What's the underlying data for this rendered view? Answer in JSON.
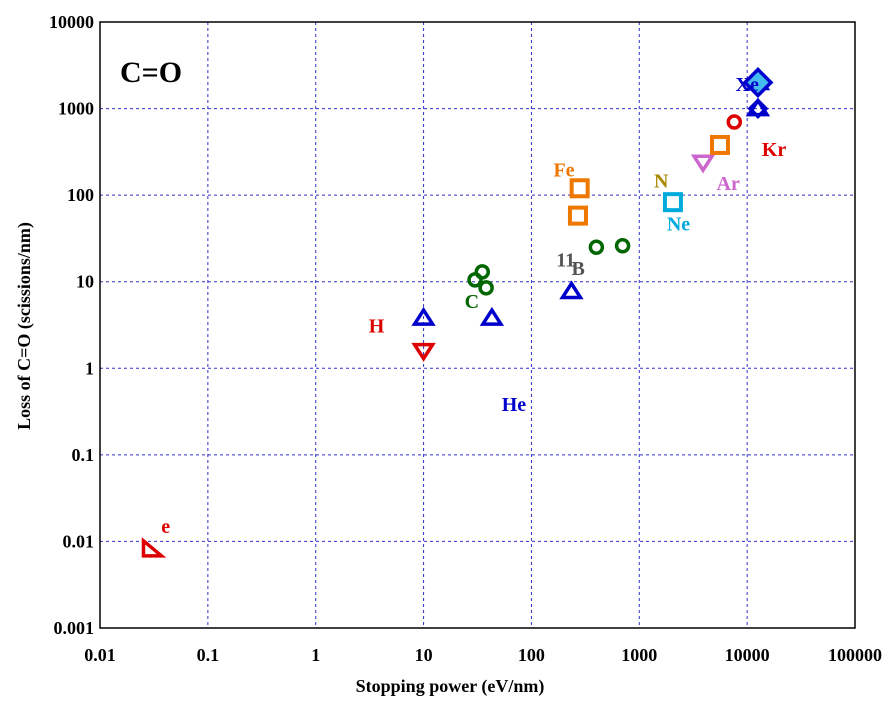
{
  "chart_data": {
    "type": "scatter",
    "title": "C=O",
    "xlabel": "Stopping power (eV/nm)",
    "ylabel": "Loss of C=O (scissions/nm)",
    "x_scale": "log",
    "y_scale": "log",
    "xlim": [
      0.01,
      100000
    ],
    "ylim": [
      0.001,
      10000
    ],
    "x_ticks": [
      0.01,
      0.1,
      1,
      10,
      100,
      1000,
      10000,
      100000
    ],
    "x_tick_labels": [
      "0.01",
      "0.1",
      "1",
      "10",
      "100",
      "1000",
      "10000",
      "100000"
    ],
    "y_ticks": [
      0.001,
      0.01,
      0.1,
      1,
      10,
      100,
      1000,
      10000
    ],
    "y_tick_labels": [
      "0.001",
      "0.01",
      "0.1",
      "1",
      "10",
      "100",
      "1000",
      "10000"
    ],
    "grid": true,
    "series": [
      {
        "name": "e",
        "color": "#dd0000",
        "marker": "triangle-corner",
        "points": [
          [
            0.03,
            0.008
          ]
        ],
        "label_at": [
          0.037,
          0.0125
        ]
      },
      {
        "name": "H",
        "color": "#dd0000",
        "marker": "triangle-down",
        "points": [
          [
            10,
            1.6
          ]
        ],
        "label_at": [
          3.1,
          2.6
        ]
      },
      {
        "name": "He",
        "color": "#0000cc",
        "marker": "triangle-up",
        "points": [
          [
            10,
            3.8
          ],
          [
            43,
            3.8
          ],
          [
            235,
            7.7
          ],
          [
            12600,
            1000
          ],
          [
            12600,
            2000
          ]
        ],
        "label_at": [
          53,
          0.32
        ]
      },
      {
        "name": "C",
        "color": "#006600",
        "marker": "circle",
        "points": [
          [
            30,
            10.5
          ],
          [
            35,
            13
          ],
          [
            38,
            8.5
          ],
          [
            400,
            25
          ],
          [
            700,
            26
          ]
        ],
        "label_at": [
          24,
          5
        ]
      },
      {
        "name": "11",
        "color": "#555555",
        "marker": "none",
        "points": [],
        "label_at": [
          170,
          15
        ]
      },
      {
        "name": "B",
        "color": "#555555",
        "marker": "none",
        "points": [],
        "label_at": [
          235,
          12
        ]
      },
      {
        "name": "Fe",
        "color": "#ee7700",
        "marker": "square",
        "points": [
          [
            280,
            120
          ],
          [
            270,
            58
          ]
        ],
        "label_at": [
          160,
          165
        ]
      },
      {
        "name": "N",
        "color": "#aa8800",
        "marker": "none",
        "points": [],
        "label_at": [
          1370,
          122
        ]
      },
      {
        "name": "Ne",
        "color": "#00aadd",
        "marker": "square",
        "points": [
          [
            2050,
            83
          ]
        ],
        "label_at": [
          1800,
          39
        ]
      },
      {
        "name": "Ar",
        "color": "#cc66cc",
        "marker": "triangle-down",
        "points": [
          [
            3900,
            240
          ]
        ],
        "label_at": [
          5200,
          115
        ]
      },
      {
        "name": "Kr",
        "color": "#dd0000",
        "marker": "circle",
        "points": [
          [
            7600,
            700
          ]
        ],
        "label_at": [
          13700,
          285
        ]
      },
      {
        "name": "Kr-square",
        "color": "#ee7700",
        "marker": "square",
        "points": [
          [
            5600,
            380
          ]
        ],
        "label_at": null
      },
      {
        "name": "Xe",
        "color": "#0000cc",
        "marker": "diamond",
        "points": [
          [
            12600,
            1000
          ]
        ],
        "label_at": [
          7800,
          1600
        ]
      },
      {
        "name": "Xe-large",
        "color": "#0000cc",
        "marker": "diamond-filled",
        "points": [
          [
            12600,
            2000
          ]
        ],
        "label_at": null
      }
    ]
  }
}
